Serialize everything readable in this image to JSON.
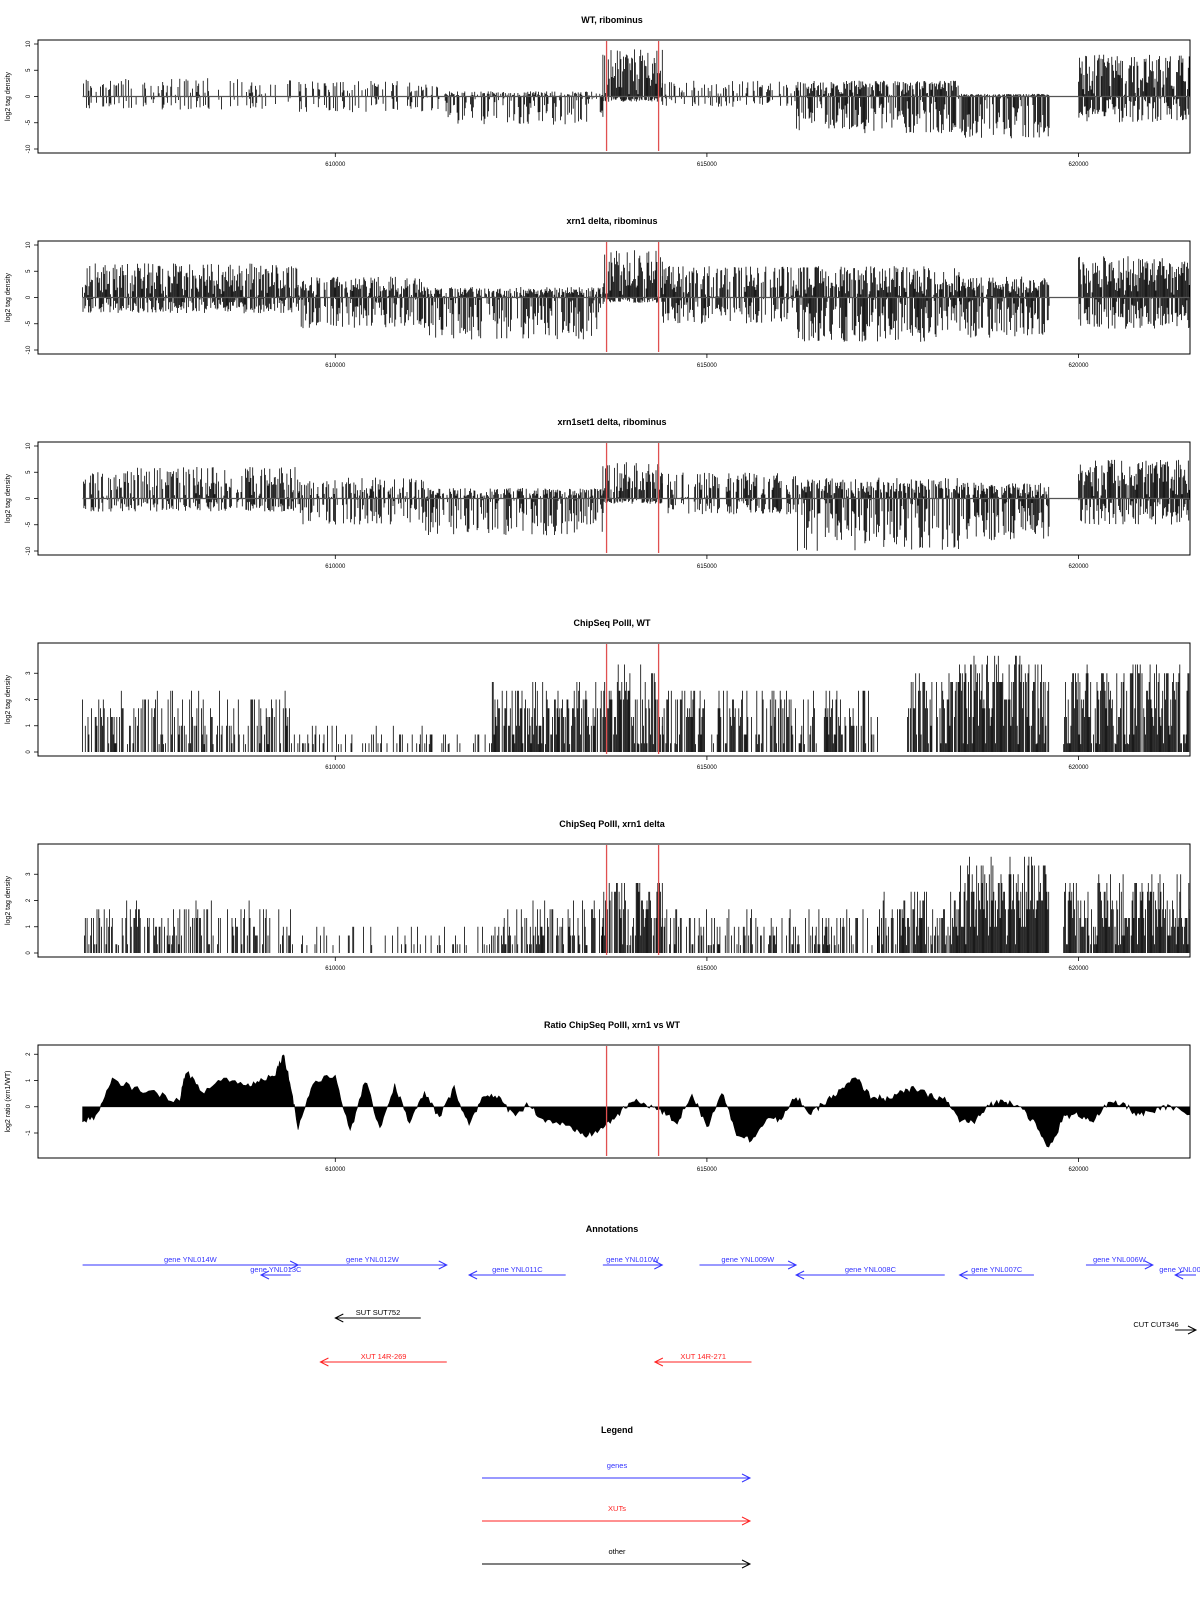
{
  "chart_data": [
    {
      "type": "bar",
      "title": "WT, ribominus",
      "ylabel": "log2 tag density",
      "xlim": [
        606000,
        621500
      ],
      "ylim": [
        -10,
        10
      ],
      "yticks": [
        10,
        5,
        0,
        -5,
        -10
      ],
      "xticks": [
        610000,
        615000,
        620000
      ],
      "highlight_x": [
        613650,
        614350
      ],
      "highlight_color": "#e05050",
      "bar_color": "#000000",
      "grid": false,
      "segments": [
        {
          "x_start": 606600,
          "x_end": 609400,
          "pos_max": 3.5,
          "neg_max": -2.5,
          "density": 0.35
        },
        {
          "x_start": 609500,
          "x_end": 611500,
          "pos_max": 3,
          "neg_max": -3,
          "density": 0.4
        },
        {
          "x_start": 611500,
          "x_end": 613600,
          "pos_max": 1,
          "neg_max": -5.5,
          "density": 0.6
        },
        {
          "x_start": 613600,
          "x_end": 614400,
          "pos_max": 9,
          "neg_max": -1,
          "density": 0.95
        },
        {
          "x_start": 614400,
          "x_end": 616200,
          "pos_max": 3,
          "neg_max": -2,
          "density": 0.35
        },
        {
          "x_start": 616200,
          "x_end": 618400,
          "pos_max": 3,
          "neg_max": -7,
          "density": 0.85
        },
        {
          "x_start": 618400,
          "x_end": 619600,
          "pos_max": 0.5,
          "neg_max": -8,
          "density": 0.9
        },
        {
          "x_start": 620000,
          "x_end": 621500,
          "pos_max": 8,
          "neg_max": -5,
          "density": 0.9
        }
      ]
    },
    {
      "type": "bar",
      "title": "xrn1 delta, ribominus",
      "ylabel": "log2 tag density",
      "xlim": [
        606000,
        621500
      ],
      "ylim": [
        -10,
        10
      ],
      "yticks": [
        10,
        5,
        0,
        -5,
        -10
      ],
      "xticks": [
        610000,
        615000,
        620000
      ],
      "highlight_x": [
        613650,
        614350
      ],
      "highlight_color": "#e05050",
      "bar_color": "#000000",
      "grid": false,
      "segments": [
        {
          "x_start": 606600,
          "x_end": 609500,
          "pos_max": 6.5,
          "neg_max": -3,
          "density": 0.9
        },
        {
          "x_start": 609500,
          "x_end": 611200,
          "pos_max": 4,
          "neg_max": -6,
          "density": 0.8
        },
        {
          "x_start": 611200,
          "x_end": 613600,
          "pos_max": 2,
          "neg_max": -8,
          "density": 0.85
        },
        {
          "x_start": 613600,
          "x_end": 614400,
          "pos_max": 9,
          "neg_max": -1,
          "density": 0.95
        },
        {
          "x_start": 614400,
          "x_end": 616200,
          "pos_max": 6,
          "neg_max": -5,
          "density": 0.7
        },
        {
          "x_start": 616200,
          "x_end": 618400,
          "pos_max": 6,
          "neg_max": -8.5,
          "density": 0.9
        },
        {
          "x_start": 618400,
          "x_end": 619600,
          "pos_max": 4,
          "neg_max": -8,
          "density": 0.9
        },
        {
          "x_start": 620000,
          "x_end": 621500,
          "pos_max": 8,
          "neg_max": -6,
          "density": 0.95
        }
      ]
    },
    {
      "type": "bar",
      "title": "xrn1set1 delta, ribominus",
      "ylabel": "log2 tag density",
      "xlim": [
        606000,
        621500
      ],
      "ylim": [
        -10,
        10
      ],
      "yticks": [
        10,
        5,
        0,
        -5,
        -10
      ],
      "xticks": [
        610000,
        615000,
        620000
      ],
      "highlight_x": [
        613650,
        614350
      ],
      "highlight_color": "#e05050",
      "bar_color": "#000000",
      "grid": false,
      "segments": [
        {
          "x_start": 606600,
          "x_end": 609500,
          "pos_max": 6,
          "neg_max": -2.5,
          "density": 0.7
        },
        {
          "x_start": 609500,
          "x_end": 611200,
          "pos_max": 4,
          "neg_max": -5,
          "density": 0.6
        },
        {
          "x_start": 611200,
          "x_end": 613600,
          "pos_max": 2,
          "neg_max": -7,
          "density": 0.7
        },
        {
          "x_start": 613600,
          "x_end": 614400,
          "pos_max": 7,
          "neg_max": -1,
          "density": 0.8
        },
        {
          "x_start": 614400,
          "x_end": 616200,
          "pos_max": 5,
          "neg_max": -3,
          "density": 0.55
        },
        {
          "x_start": 616200,
          "x_end": 618400,
          "pos_max": 4,
          "neg_max": -10,
          "density": 0.8
        },
        {
          "x_start": 618400,
          "x_end": 619600,
          "pos_max": 3,
          "neg_max": -8,
          "density": 0.85
        },
        {
          "x_start": 620000,
          "x_end": 621500,
          "pos_max": 7.5,
          "neg_max": -5,
          "density": 0.9
        }
      ]
    },
    {
      "type": "bar",
      "title": "ChipSeq PolII, WT",
      "ylabel": "log2 tag density",
      "xlim": [
        606000,
        621500
      ],
      "ylim": [
        0,
        4
      ],
      "yticks": [
        0,
        1,
        2,
        3
      ],
      "xticks": [
        610000,
        615000,
        620000
      ],
      "highlight_x": [
        613650,
        614350
      ],
      "highlight_color": "#e05050",
      "bar_color": "#000000",
      "grid": false,
      "segments": [
        {
          "x_start": 606600,
          "x_end": 609400,
          "pos_max": 2.3,
          "neg_max": 0,
          "density": 0.55
        },
        {
          "x_start": 609400,
          "x_end": 612100,
          "pos_max": 1,
          "neg_max": 0,
          "density": 0.3
        },
        {
          "x_start": 612100,
          "x_end": 613600,
          "pos_max": 2.6,
          "neg_max": 0,
          "density": 0.8
        },
        {
          "x_start": 613600,
          "x_end": 614400,
          "pos_max": 3.3,
          "neg_max": 0,
          "density": 0.9
        },
        {
          "x_start": 614400,
          "x_end": 617300,
          "pos_max": 2.5,
          "neg_max": 0,
          "density": 0.6
        },
        {
          "x_start": 617700,
          "x_end": 618400,
          "pos_max": 3,
          "neg_max": 0,
          "density": 0.8
        },
        {
          "x_start": 618400,
          "x_end": 619600,
          "pos_max": 3.8,
          "neg_max": 0,
          "density": 0.95
        },
        {
          "x_start": 619800,
          "x_end": 621500,
          "pos_max": 3.4,
          "neg_max": 0,
          "density": 0.95
        }
      ]
    },
    {
      "type": "bar",
      "title": "ChipSeq PolII, xrn1 delta",
      "ylabel": "log2 tag density",
      "xlim": [
        606000,
        621500
      ],
      "ylim": [
        0,
        4
      ],
      "yticks": [
        0,
        1,
        2,
        3
      ],
      "xticks": [
        610000,
        615000,
        620000
      ],
      "highlight_x": [
        613650,
        614350
      ],
      "highlight_color": "#e05050",
      "bar_color": "#000000",
      "grid": false,
      "segments": [
        {
          "x_start": 606600,
          "x_end": 609400,
          "pos_max": 1.9,
          "neg_max": 0,
          "density": 0.5
        },
        {
          "x_start": 609400,
          "x_end": 612200,
          "pos_max": 1,
          "neg_max": 0,
          "density": 0.2
        },
        {
          "x_start": 612200,
          "x_end": 613600,
          "pos_max": 2,
          "neg_max": 0,
          "density": 0.65
        },
        {
          "x_start": 613600,
          "x_end": 614400,
          "pos_max": 2.8,
          "neg_max": 0,
          "density": 0.9
        },
        {
          "x_start": 614400,
          "x_end": 617300,
          "pos_max": 1.7,
          "neg_max": 0,
          "density": 0.45
        },
        {
          "x_start": 617300,
          "x_end": 618400,
          "pos_max": 2.3,
          "neg_max": 0,
          "density": 0.75
        },
        {
          "x_start": 618400,
          "x_end": 619600,
          "pos_max": 3.7,
          "neg_max": 0,
          "density": 0.98
        },
        {
          "x_start": 619800,
          "x_end": 621500,
          "pos_max": 3,
          "neg_max": 0,
          "density": 0.95
        }
      ]
    },
    {
      "type": "area",
      "title": "Ratio ChipSeq PolII, xrn1 vs WT",
      "ylabel": "log2 ratio (xrn1/WT)",
      "xlim": [
        606000,
        621500
      ],
      "ylim": [
        -1.8,
        2.2
      ],
      "yticks": [
        2,
        1,
        0,
        -1
      ],
      "xticks": [
        610000,
        615000,
        620000
      ],
      "highlight_x": [
        613650,
        614350
      ],
      "highlight_color": "#e05050",
      "bar_color": "#000000",
      "grid": false,
      "x": [
        606600,
        606800,
        607000,
        607300,
        607600,
        607900,
        608000,
        608200,
        608500,
        608800,
        609000,
        609200,
        609300,
        609400,
        609500,
        609700,
        610000,
        610200,
        610400,
        610600,
        610800,
        611000,
        611200,
        611400,
        611600,
        611800,
        612000,
        612200,
        612400,
        612600,
        612800,
        613000,
        613200,
        613400,
        613600,
        613800,
        614000,
        614200,
        614400,
        614600,
        614800,
        615000,
        615200,
        615400,
        615600,
        615800,
        616000,
        616200,
        616400,
        616600,
        616800,
        617000,
        617200,
        617400,
        617600,
        617800,
        618000,
        618200,
        618400,
        618600,
        618800,
        619000,
        619200,
        619400,
        619600,
        619800,
        620000,
        620200,
        620400,
        620600,
        620800,
        621000,
        621200,
        621500
      ],
      "y": [
        -0.6,
        -0.3,
        1.0,
        0.7,
        0.5,
        0.2,
        1.4,
        0.5,
        1.1,
        0.8,
        1.0,
        1.3,
        2.0,
        0.8,
        -0.8,
        0.9,
        1.2,
        -1.0,
        1.0,
        -0.8,
        0.8,
        -0.6,
        0.5,
        -0.4,
        0.7,
        -0.7,
        0.5,
        0.3,
        -0.3,
        0.1,
        -0.5,
        -0.6,
        -0.9,
        -1.1,
        -0.8,
        -0.3,
        0.2,
        0.1,
        -0.2,
        -0.6,
        0.5,
        -0.8,
        0.6,
        -1.0,
        -1.3,
        -0.4,
        -0.5,
        0.4,
        -0.3,
        0.2,
        0.6,
        1.1,
        0.4,
        0.3,
        0.5,
        0.7,
        0.4,
        0.3,
        -0.5,
        -0.6,
        0.1,
        0.2,
        0.1,
        -0.6,
        -1.6,
        -0.4,
        -0.3,
        -0.5,
        0.1,
        0.1,
        -0.3,
        -0.2,
        0.0,
        -0.3
      ]
    }
  ],
  "annotations": {
    "title": "Annotations",
    "genes": [
      {
        "label": "gene YNL014W",
        "start": 606600,
        "end": 609500,
        "strand": "+",
        "row": 0
      },
      {
        "label": "gene YNL013C",
        "start": 609000,
        "end": 609400,
        "strand": "-",
        "row": 1
      },
      {
        "label": "gene YNL012W",
        "start": 609500,
        "end": 611500,
        "strand": "+",
        "row": 0
      },
      {
        "label": "gene YNL011C",
        "start": 611800,
        "end": 613100,
        "strand": "-",
        "row": 1
      },
      {
        "label": "gene YNL010W",
        "start": 613600,
        "end": 614400,
        "strand": "+",
        "row": 0
      },
      {
        "label": "gene YNL009W",
        "start": 614900,
        "end": 616200,
        "strand": "+",
        "row": 0
      },
      {
        "label": "gene YNL008C",
        "start": 616200,
        "end": 618200,
        "strand": "-",
        "row": 1
      },
      {
        "label": "gene YNL007C",
        "start": 618400,
        "end": 619400,
        "strand": "-",
        "row": 1
      },
      {
        "label": "gene YNL006W",
        "start": 620100,
        "end": 621000,
        "strand": "+",
        "row": 0
      },
      {
        "label": "gene YNL00",
        "start": 621300,
        "end": 622400,
        "strand": "-",
        "row": 1
      }
    ],
    "suts": [
      {
        "label": "SUT SUT752",
        "start": 610000,
        "end": 611150,
        "strand": "-"
      }
    ],
    "cuts": [
      {
        "label": "CUT CUT346",
        "start": 621300,
        "end": 621700,
        "strand": "+"
      }
    ],
    "xuts": [
      {
        "label": "XUT 14R-269",
        "start": 609800,
        "end": 611500,
        "strand": "-"
      },
      {
        "label": "XUT 14R-271",
        "start": 614300,
        "end": 615600,
        "strand": "-"
      }
    ]
  },
  "legend": {
    "title": "Legend",
    "items": [
      {
        "label": "genes",
        "color": "#3333ff"
      },
      {
        "label": "XUTs",
        "color": "#ff2222"
      },
      {
        "label": "other",
        "color": "#000000"
      }
    ]
  },
  "colors": {
    "gene": "#3333ff",
    "xut": "#ff2222",
    "other": "#000000"
  }
}
